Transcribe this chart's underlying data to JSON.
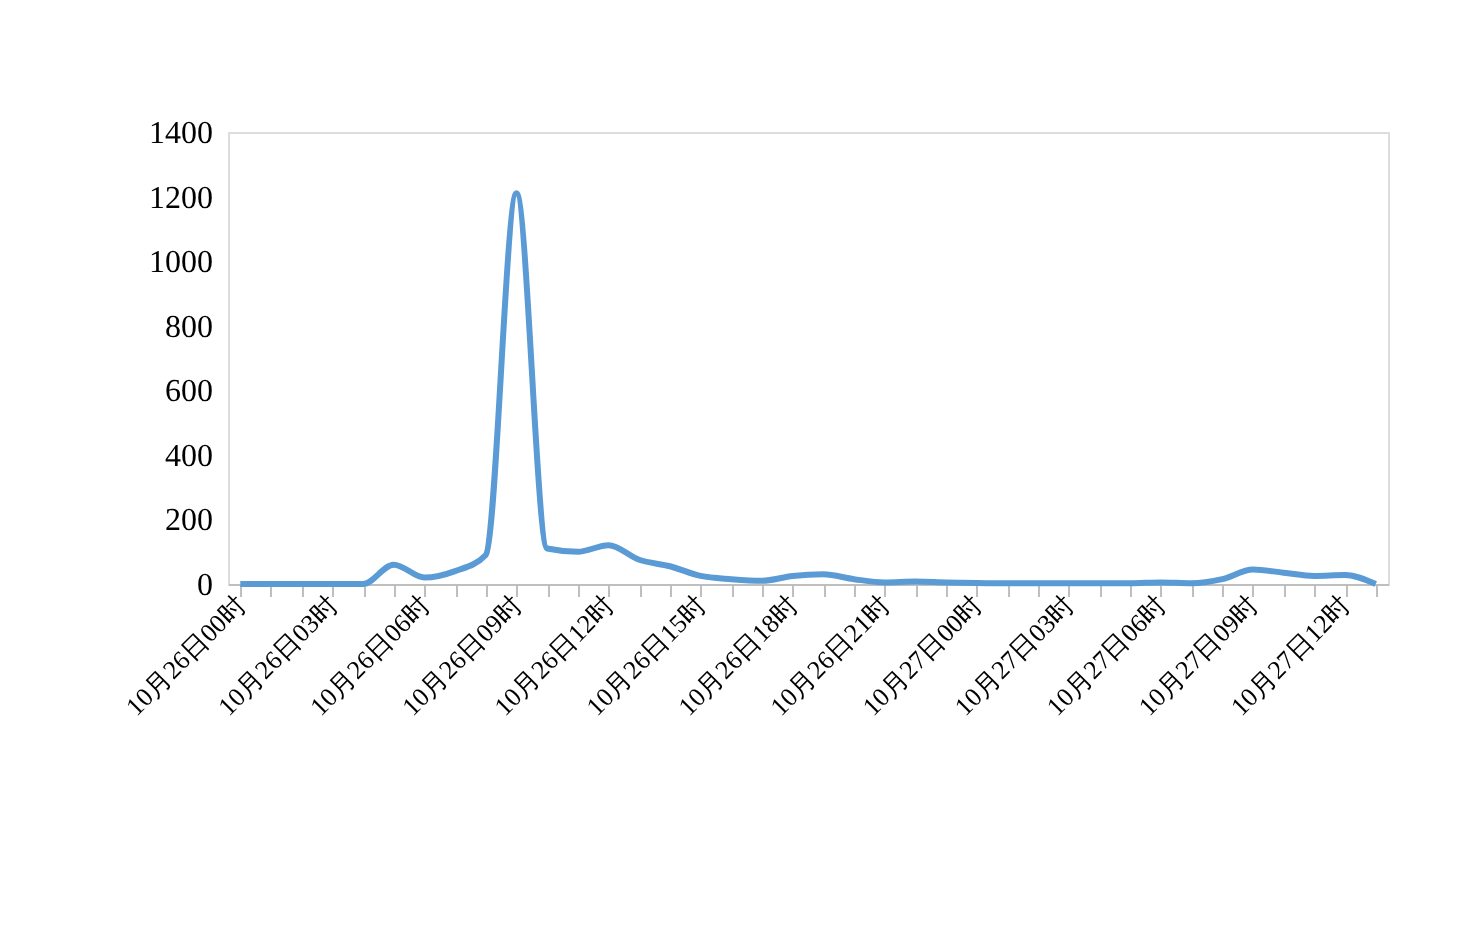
{
  "chart_data": {
    "type": "line",
    "categories": [
      "10月26日00时",
      null,
      null,
      "10月26日03时",
      null,
      null,
      "10月26日06时",
      null,
      null,
      "10月26日09时",
      null,
      null,
      "10月26日12时",
      null,
      null,
      "10月26日15时",
      null,
      null,
      "10月26日18时",
      null,
      null,
      "10月26日21时",
      null,
      null,
      "10月27日00时",
      null,
      null,
      "10月27日03时",
      null,
      null,
      "10月27日06时",
      null,
      null,
      "10月27日09时",
      null,
      null,
      "10月27日12时",
      null
    ],
    "series": [
      {
        "color": "#5b9bd5",
        "values": [
          0,
          0,
          0,
          0,
          0,
          60,
          20,
          40,
          90,
          1210,
          110,
          100,
          120,
          75,
          55,
          25,
          15,
          10,
          25,
          30,
          15,
          5,
          8,
          5,
          3,
          2,
          2,
          2,
          2,
          2,
          5,
          2,
          15,
          45,
          35,
          25,
          28,
          0
        ]
      }
    ],
    "ylim": [
      0,
      1400
    ],
    "yticks": [
      0,
      200,
      400,
      600,
      800,
      1000,
      1200,
      1400
    ],
    "grid": false,
    "marker": "none",
    "line_style": "solid"
  }
}
